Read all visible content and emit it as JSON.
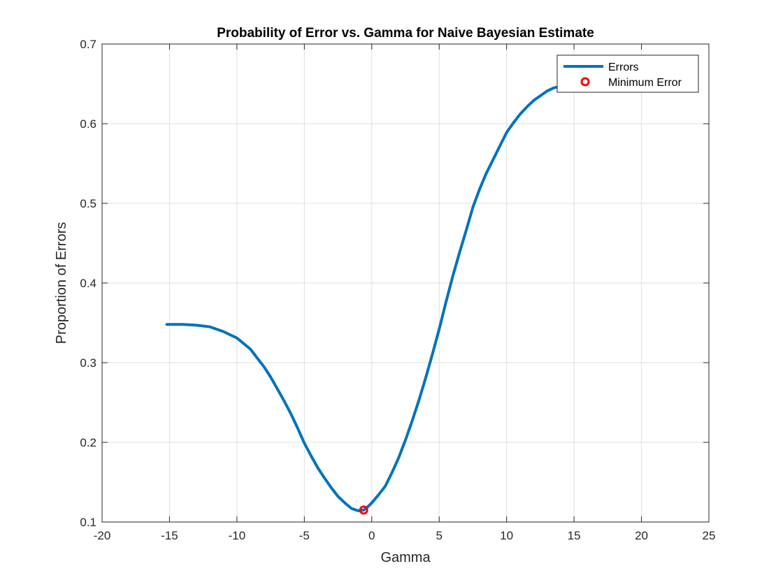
{
  "chart_data": {
    "type": "line",
    "title": "Probability of Error vs. Gamma for Naive Bayesian Estimate",
    "xlabel": "Gamma",
    "ylabel": "Proportion of Errors",
    "xlim": [
      -20,
      25
    ],
    "ylim": [
      0.1,
      0.7
    ],
    "xticks": [
      -20,
      -15,
      -10,
      -5,
      0,
      5,
      10,
      15,
      20,
      25
    ],
    "yticks": [
      0.1,
      0.2,
      0.3,
      0.4,
      0.5,
      0.6,
      0.7
    ],
    "xtick_labels": [
      "-20",
      "-15",
      "-10",
      "-5",
      "0",
      "5",
      "10",
      "15",
      "20",
      "25"
    ],
    "ytick_labels": [
      "0.1",
      "0.2",
      "0.3",
      "0.4",
      "0.5",
      "0.6",
      "0.7"
    ],
    "grid": true,
    "legend_position": "top-right",
    "series": [
      {
        "name": "Errors",
        "color": "#0072BD",
        "style": "line",
        "x": [
          -15.2,
          -14.0,
          -13.0,
          -12.0,
          -11.0,
          -10.0,
          -9.0,
          -8.5,
          -8.0,
          -7.5,
          -7.0,
          -6.5,
          -6.0,
          -5.5,
          -5.0,
          -4.5,
          -4.0,
          -3.5,
          -3.0,
          -2.5,
          -2.0,
          -1.5,
          -1.0,
          -0.6,
          -0.3,
          0.0,
          0.5,
          1.0,
          1.5,
          2.0,
          2.5,
          3.0,
          3.5,
          4.0,
          4.5,
          5.0,
          5.5,
          6.0,
          6.5,
          7.0,
          7.5,
          8.0,
          8.5,
          9.0,
          9.5,
          10.0,
          10.5,
          11.0,
          11.5,
          12.0,
          12.5,
          13.0,
          13.5,
          14.0
        ],
        "y": [
          0.348,
          0.348,
          0.347,
          0.345,
          0.339,
          0.331,
          0.317,
          0.306,
          0.295,
          0.282,
          0.267,
          0.252,
          0.236,
          0.218,
          0.199,
          0.183,
          0.168,
          0.155,
          0.143,
          0.132,
          0.124,
          0.117,
          0.114,
          0.115,
          0.119,
          0.124,
          0.134,
          0.145,
          0.162,
          0.181,
          0.203,
          0.227,
          0.253,
          0.281,
          0.311,
          0.342,
          0.376,
          0.408,
          0.438,
          0.466,
          0.495,
          0.518,
          0.538,
          0.555,
          0.572,
          0.589,
          0.601,
          0.612,
          0.621,
          0.629,
          0.635,
          0.641,
          0.645,
          0.647
        ]
      },
      {
        "name": "Minimum Error",
        "color": "#FF0000",
        "style": "marker",
        "x": [
          -0.6
        ],
        "y": [
          0.115
        ]
      }
    ]
  }
}
